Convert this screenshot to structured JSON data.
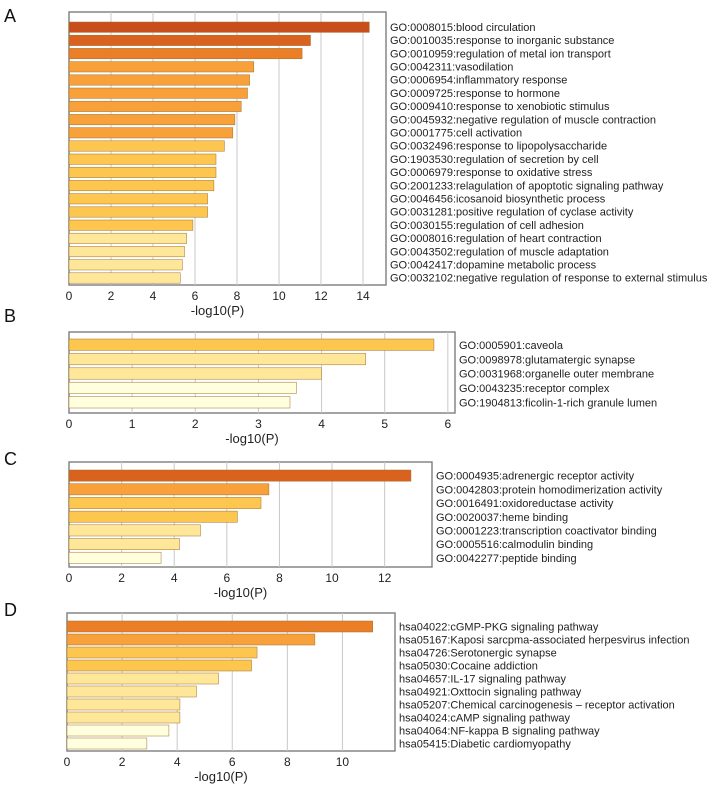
{
  "colors": {
    "bar_scale": [
      "#ffffde",
      "#ffe79a",
      "#fdc64f",
      "#f8a13a",
      "#eb7f27",
      "#d9621f",
      "#c84f1c"
    ],
    "bar_stroke": "#a07030",
    "grid": "#c8c8c8",
    "frame": "#7d7d7d"
  },
  "chart_data": [
    {
      "panel": "A",
      "type": "bar",
      "orientation": "horizontal",
      "xlabel": "-log10(P)",
      "xlim": [
        0,
        15
      ],
      "xticks": [
        0,
        2,
        4,
        6,
        8,
        10,
        12,
        14
      ],
      "categories": [
        "GO:0008015:blood circulation",
        "GO:0010035:response to inorganic substance",
        "GO:0010959:regulation of metal ion transport",
        "GO:0042311:vasodilation",
        "GO:0006954:inflammatory response",
        "GO:0009725:response to hormone",
        "GO:0009410:response to xenobiotic stimulus",
        "GO:0045932:negative regulation of muscle contraction",
        "GO:0001775:cell activation",
        "GO:0032496:response to lipopolysaccharide",
        "GO:1903530:regulation of secretion by cell",
        "GO:0006979:response to oxidative stress",
        "GO:2001233:relagulation of apoptotic signaling pathway",
        "GO:0046456:icosanoid biosynthetic process",
        "GO:0031281:positive regulation of cyclase activity",
        "GO:0030155:regulation of cell adhesion",
        "GO:0008016:regulation of heart contraction",
        "GO:0043502:regulation of muscle adaptation",
        "GO:0042417:dopamine metabolic process",
        "GO:0032102:negative regulation of response to external stimulus"
      ],
      "values": [
        14.3,
        11.5,
        11.1,
        8.8,
        8.6,
        8.5,
        8.2,
        7.9,
        7.8,
        7.4,
        7.0,
        7.0,
        6.9,
        6.6,
        6.6,
        5.9,
        5.6,
        5.5,
        5.4,
        5.3
      ]
    },
    {
      "panel": "B",
      "type": "bar",
      "orientation": "horizontal",
      "xlabel": "-log10(P)",
      "xlim": [
        0,
        6.05
      ],
      "xticks": [
        0,
        1,
        2,
        3,
        4,
        5,
        6
      ],
      "categories": [
        "GO:0005901:caveola",
        "GO:0098978:glutamatergic synapse",
        "GO:0031968:organelle outer membrane",
        "GO:0043235:receptor complex",
        "GO:1904813:ficolin-1-rich granule lumen"
      ],
      "values": [
        5.78,
        4.7,
        4.0,
        3.6,
        3.5
      ]
    },
    {
      "panel": "C",
      "type": "bar",
      "orientation": "horizontal",
      "xlabel": "-log10(P)",
      "xlim": [
        0,
        13.8
      ],
      "xticks": [
        0,
        2,
        4,
        6,
        8,
        10,
        12
      ],
      "categories": [
        "GO:0004935:adrenergic receptor activity",
        "GO:0042803:protein homodimerization activity",
        "GO:0016491:oxidoreductase activity",
        "GO:0020037:heme binding",
        "GO:0001223:transcription coactivator binding",
        "GO:0005516:calmodulin binding",
        "GO:0042277:peptide binding"
      ],
      "values": [
        13.0,
        7.6,
        7.3,
        6.4,
        5.0,
        4.2,
        3.5
      ]
    },
    {
      "panel": "D",
      "type": "bar",
      "orientation": "horizontal",
      "xlabel": "-log10(P)",
      "xlim": [
        0,
        11.8
      ],
      "xticks": [
        0,
        2,
        4,
        6,
        8,
        10
      ],
      "categories": [
        "hsa04022:cGMP-PKG signaling pathway",
        "hsa05167:Kaposi sarcpma-associated herpesvirus infection",
        "hsa04726:Serotonergic synapse",
        "hsa05030:Cocaine addiction",
        "hsa04657:IL-17 signaling pathway",
        "hsa04921:Oxttocin signaling pathway",
        "hsa05207:Chemical carcinogenesis – receptor activation",
        "hsa04024:cAMP signaling pathway",
        "hsa04064:NF-kappa B signaling pathway",
        "hsa05415:Diabetic cardiomyopathy"
      ],
      "values": [
        11.1,
        9.0,
        6.9,
        6.7,
        5.5,
        4.7,
        4.1,
        4.1,
        3.7,
        2.9
      ]
    }
  ]
}
